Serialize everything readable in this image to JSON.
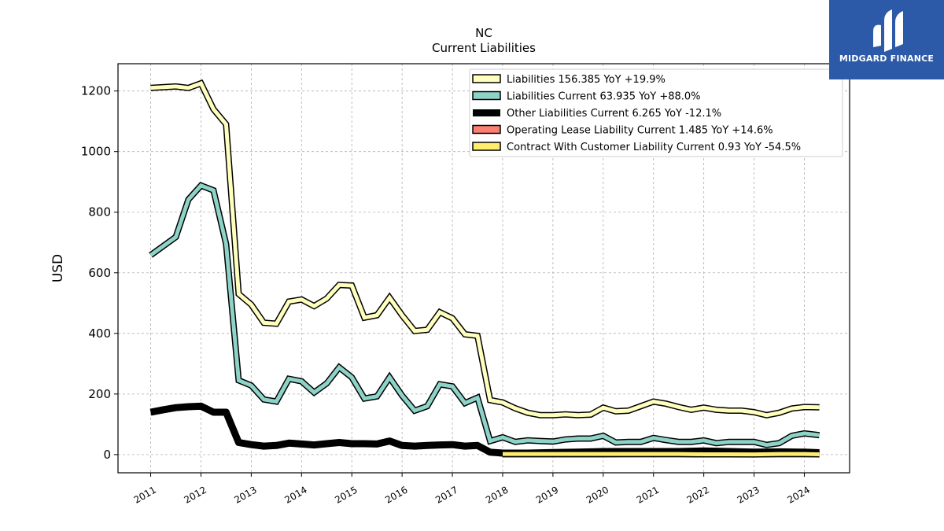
{
  "title_line1": "NC",
  "title_line2": "Current  Liabilities",
  "logo": {
    "text": "MIDGARD FINANCE",
    "color": "#2c5aa8"
  },
  "chart_data": {
    "type": "line",
    "ylabel": "USD",
    "xlabel": "",
    "ylim": [
      -60,
      1290
    ],
    "xlim": [
      2010.35,
      2024.9
    ],
    "yticks": [
      0,
      200,
      400,
      600,
      800,
      1000,
      1200
    ],
    "xticks": [
      "2011",
      "2012",
      "2013",
      "2014",
      "2015",
      "2016",
      "2017",
      "2018",
      "2019",
      "2020",
      "2021",
      "2022",
      "2023",
      "2024"
    ],
    "grid": true,
    "legend_position": "top-right",
    "series": [
      {
        "name": "Liabilities  156.385 YoY +19.9%",
        "color": "#ffffbe",
        "x": [
          2011.0,
          2011.5,
          2011.75,
          2012.0,
          2012.25,
          2012.5,
          2012.75,
          2013.0,
          2013.25,
          2013.5,
          2013.75,
          2014.0,
          2014.25,
          2014.5,
          2014.75,
          2015.0,
          2015.25,
          2015.5,
          2015.75,
          2016.0,
          2016.25,
          2016.5,
          2016.75,
          2017.0,
          2017.25,
          2017.5,
          2017.75,
          2018.0,
          2018.25,
          2018.5,
          2018.75,
          2019.0,
          2019.25,
          2019.5,
          2019.75,
          2020.0,
          2020.25,
          2020.5,
          2020.75,
          2021.0,
          2021.25,
          2021.5,
          2021.75,
          2022.0,
          2022.25,
          2022.5,
          2022.75,
          2023.0,
          2023.25,
          2023.5,
          2023.75,
          2024.0,
          2024.3
        ],
        "y": [
          1210,
          1215,
          1210,
          1225,
          1140,
          1090,
          530,
          495,
          435,
          432,
          505,
          512,
          490,
          515,
          560,
          558,
          452,
          460,
          518,
          460,
          408,
          412,
          470,
          450,
          397,
          392,
          180,
          172,
          153,
          138,
          130,
          130,
          133,
          130,
          132,
          155,
          143,
          145,
          160,
          175,
          168,
          157,
          148,
          155,
          148,
          145,
          145,
          140,
          130,
          138,
          152,
          157,
          156
        ]
      },
      {
        "name": "Liabilities Current  63.935 YoY +88.0%",
        "color": "#8dd3c7",
        "x": [
          2011.0,
          2011.5,
          2011.75,
          2012.0,
          2012.25,
          2012.5,
          2012.75,
          2013.0,
          2013.25,
          2013.5,
          2013.75,
          2014.0,
          2014.25,
          2014.5,
          2014.75,
          2015.0,
          2015.25,
          2015.5,
          2015.75,
          2016.0,
          2016.25,
          2016.5,
          2016.75,
          2017.0,
          2017.25,
          2017.5,
          2017.75,
          2018.0,
          2018.25,
          2018.5,
          2018.75,
          2019.0,
          2019.25,
          2019.5,
          2019.75,
          2020.0,
          2020.25,
          2020.5,
          2020.75,
          2021.0,
          2021.25,
          2021.5,
          2021.75,
          2022.0,
          2022.25,
          2022.5,
          2022.75,
          2023.0,
          2023.25,
          2023.5,
          2023.75,
          2024.0,
          2024.3
        ],
        "y": [
          658,
          718,
          842,
          888,
          872,
          695,
          245,
          228,
          182,
          175,
          250,
          242,
          205,
          235,
          288,
          255,
          185,
          192,
          255,
          195,
          145,
          160,
          232,
          225,
          170,
          188,
          45,
          57,
          42,
          47,
          45,
          43,
          50,
          53,
          53,
          62,
          40,
          42,
          42,
          55,
          48,
          42,
          42,
          47,
          38,
          42,
          42,
          42,
          32,
          38,
          62,
          70,
          64
        ]
      },
      {
        "name": "Other Liabilities Current  6.265 YoY -12.1%",
        "color": "#000000",
        "x": [
          2011.0,
          2011.25,
          2011.5,
          2011.75,
          2012.0,
          2012.25,
          2012.5,
          2012.75,
          2013.0,
          2013.25,
          2013.5,
          2013.75,
          2014.0,
          2014.25,
          2014.5,
          2014.75,
          2015.0,
          2015.25,
          2015.5,
          2015.75,
          2016.0,
          2016.25,
          2016.5,
          2016.75,
          2017.0,
          2017.25,
          2017.5,
          2017.75,
          2018.0,
          2018.5,
          2019.0,
          2019.5,
          2020.0,
          2020.5,
          2021.0,
          2021.5,
          2022.0,
          2022.5,
          2023.0,
          2023.5,
          2024.0,
          2024.3
        ],
        "y": [
          140,
          148,
          155,
          158,
          160,
          140,
          140,
          40,
          33,
          28,
          30,
          38,
          35,
          32,
          36,
          40,
          36,
          36,
          35,
          45,
          30,
          28,
          30,
          32,
          33,
          28,
          30,
          8,
          5,
          5,
          7,
          8,
          10,
          10,
          10,
          10,
          12,
          10,
          8,
          9,
          8,
          6.3
        ]
      },
      {
        "name": "Operating Lease Liability Current  1.485 YoY +14.6%",
        "color": "#fb8072",
        "x": [
          2018.0,
          2018.5,
          2019.0,
          2019.5,
          2020.0,
          2020.5,
          2021.0,
          2021.5,
          2022.0,
          2022.5,
          2023.0,
          2023.5,
          2024.0,
          2024.3
        ],
        "y": [
          1.2,
          1.3,
          1.3,
          1.3,
          1.3,
          1.4,
          1.4,
          1.4,
          1.3,
          1.3,
          1.3,
          1.4,
          1.5,
          1.485
        ]
      },
      {
        "name": "Contract With Customer Liability Current  0.93 YoY -54.5%",
        "color": "#ffed6f",
        "x": [
          2018.0,
          2018.5,
          2019.0,
          2019.5,
          2020.0,
          2020.5,
          2021.0,
          2021.5,
          2022.0,
          2022.5,
          2023.0,
          2023.5,
          2024.0,
          2024.3
        ],
        "y": [
          2.0,
          2.0,
          2.0,
          2.0,
          2.0,
          2.0,
          2.0,
          2.0,
          1.0,
          1.0,
          0.8,
          2.0,
          2.0,
          0.93
        ]
      }
    ]
  }
}
